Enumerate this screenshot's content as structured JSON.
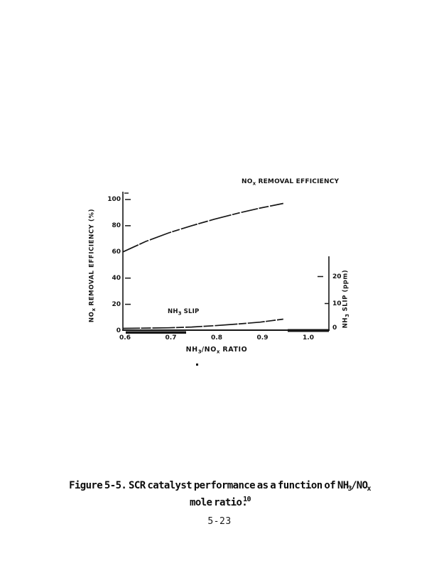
{
  "document": {
    "caption": {
      "l1_pre": "Figure 5-5.  SCR catalyst performance as a function of NH",
      "l1_sub1": "3",
      "l1_mid": "/NO",
      "l1_sub2": "x",
      "l2_pre": "mole ratio.",
      "l2_sup": "10"
    },
    "page_number": "5-23"
  },
  "chart_data": {
    "type": "line",
    "title": "",
    "xlabel": "NH3/NOx RATIO",
    "ylabel_left": "NOx REMOVAL EFFICIENCY (%)",
    "ylabel_right": "NH3 SLIP (ppm)",
    "xlim": [
      0.6,
      1.05
    ],
    "ylim_left": [
      0,
      100
    ],
    "ylim_right": [
      0,
      28
    ],
    "grid": false,
    "x_ticks": [
      0.6,
      0.7,
      0.8,
      0.9,
      1.0
    ],
    "x_tick_labels": [
      "0.6",
      "0.7",
      "0.8",
      "0.9",
      "1.0"
    ],
    "y_left_ticks": [
      0,
      20,
      40,
      60,
      80,
      100
    ],
    "y_left_tick_labels": [
      "0",
      "20",
      "40",
      "60",
      "80",
      "100"
    ],
    "y_right_ticks": [
      0,
      10,
      20
    ],
    "y_right_tick_labels": [
      "0",
      "10",
      "20"
    ],
    "ink_color": "#161616",
    "series": [
      {
        "name": "NOx REMOVAL EFFICIENCY",
        "axis": "left",
        "points": [
          [
            0.6,
            60
          ],
          [
            0.65,
            68
          ],
          [
            0.7,
            74.5
          ],
          [
            0.75,
            80
          ],
          [
            0.8,
            85
          ],
          [
            0.85,
            89.5
          ],
          [
            0.9,
            93.5
          ],
          [
            0.95,
            97
          ]
        ]
      },
      {
        "name": "NH3 SLIP",
        "axis": "right",
        "points": [
          [
            0.6,
            0.8
          ],
          [
            0.7,
            1.0
          ],
          [
            0.75,
            1.3
          ],
          [
            0.8,
            1.8
          ],
          [
            0.85,
            2.4
          ],
          [
            0.9,
            3.1
          ],
          [
            0.95,
            4.2
          ]
        ]
      }
    ],
    "labels": {
      "nox_curve_pre": "NO",
      "nox_curve_sub": "x",
      "nox_curve_post": " REMOVAL EFFICIENCY",
      "slip_curve_pre": "NH",
      "slip_curve_sub": "3",
      "slip_curve_post": " SLIP",
      "ylabel_left_pre": "NO",
      "ylabel_left_sub": "x",
      "ylabel_left_post": " REMOVAL EFFICIENCY (%)",
      "ylabel_right_pre": "NH",
      "ylabel_right_sub": "3",
      "ylabel_right_post": " SLIP (ppm)",
      "xlabel_pre": "NH",
      "xlabel_sub1": "3",
      "xlabel_mid": "/NO",
      "xlabel_sub2": "x",
      "xlabel_post": " RATIO"
    }
  }
}
